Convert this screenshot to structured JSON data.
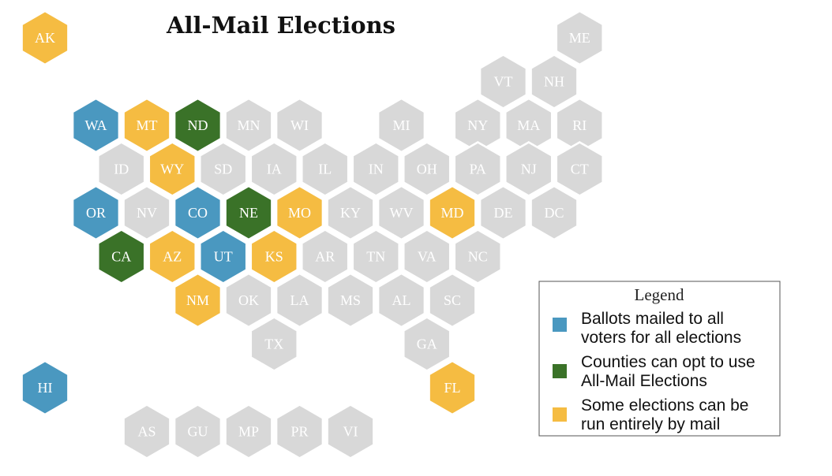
{
  "title": "All-Mail Elections",
  "colors": {
    "none": "#d8d8d8",
    "all_mail": "#4a98c0",
    "county_opt": "#3a7228",
    "some_elections": "#f5bc42"
  },
  "states": [
    {
      "abbr": "AK",
      "category": "some_elections",
      "col": 0,
      "row": 0
    },
    {
      "abbr": "ME",
      "category": "none",
      "col": 10.5,
      "row": 0
    },
    {
      "abbr": "VT",
      "category": "none",
      "col": 9,
      "row": 1
    },
    {
      "abbr": "NH",
      "category": "none",
      "col": 10,
      "row": 1
    },
    {
      "abbr": "WA",
      "category": "all_mail",
      "col": 1,
      "row": 2
    },
    {
      "abbr": "MT",
      "category": "some_elections",
      "col": 2,
      "row": 2
    },
    {
      "abbr": "ND",
      "category": "county_opt",
      "col": 3,
      "row": 2
    },
    {
      "abbr": "MN",
      "category": "none",
      "col": 4,
      "row": 2
    },
    {
      "abbr": "WI",
      "category": "none",
      "col": 5,
      "row": 2
    },
    {
      "abbr": "MI",
      "category": "none",
      "col": 7,
      "row": 2
    },
    {
      "abbr": "NY",
      "category": "none",
      "col": 8.5,
      "row": 2
    },
    {
      "abbr": "MA",
      "category": "none",
      "col": 9.5,
      "row": 2
    },
    {
      "abbr": "RI",
      "category": "none",
      "col": 10.5,
      "row": 2
    },
    {
      "abbr": "ID",
      "category": "none",
      "col": 1.5,
      "row": 3
    },
    {
      "abbr": "WY",
      "category": "some_elections",
      "col": 2.5,
      "row": 3
    },
    {
      "abbr": "SD",
      "category": "none",
      "col": 3.5,
      "row": 3
    },
    {
      "abbr": "IA",
      "category": "none",
      "col": 4.5,
      "row": 3
    },
    {
      "abbr": "IL",
      "category": "none",
      "col": 5.5,
      "row": 3
    },
    {
      "abbr": "IN",
      "category": "none",
      "col": 6.5,
      "row": 3
    },
    {
      "abbr": "OH",
      "category": "none",
      "col": 7.5,
      "row": 3
    },
    {
      "abbr": "PA",
      "category": "none",
      "col": 8.5,
      "row": 3
    },
    {
      "abbr": "NJ",
      "category": "none",
      "col": 9.5,
      "row": 3
    },
    {
      "abbr": "CT",
      "category": "none",
      "col": 10.5,
      "row": 3
    },
    {
      "abbr": "OR",
      "category": "all_mail",
      "col": 1,
      "row": 4
    },
    {
      "abbr": "NV",
      "category": "none",
      "col": 2,
      "row": 4
    },
    {
      "abbr": "CO",
      "category": "all_mail",
      "col": 3,
      "row": 4
    },
    {
      "abbr": "NE",
      "category": "county_opt",
      "col": 4,
      "row": 4
    },
    {
      "abbr": "MO",
      "category": "some_elections",
      "col": 5,
      "row": 4
    },
    {
      "abbr": "KY",
      "category": "none",
      "col": 6,
      "row": 4
    },
    {
      "abbr": "WV",
      "category": "none",
      "col": 7,
      "row": 4
    },
    {
      "abbr": "MD",
      "category": "some_elections",
      "col": 8,
      "row": 4
    },
    {
      "abbr": "DE",
      "category": "none",
      "col": 9,
      "row": 4
    },
    {
      "abbr": "DC",
      "category": "none",
      "col": 10,
      "row": 4
    },
    {
      "abbr": "CA",
      "category": "county_opt",
      "col": 1.5,
      "row": 5
    },
    {
      "abbr": "AZ",
      "category": "some_elections",
      "col": 2.5,
      "row": 5
    },
    {
      "abbr": "UT",
      "category": "all_mail",
      "col": 3.5,
      "row": 5
    },
    {
      "abbr": "KS",
      "category": "some_elections",
      "col": 4.5,
      "row": 5
    },
    {
      "abbr": "AR",
      "category": "none",
      "col": 5.5,
      "row": 5
    },
    {
      "abbr": "TN",
      "category": "none",
      "col": 6.5,
      "row": 5
    },
    {
      "abbr": "VA",
      "category": "none",
      "col": 7.5,
      "row": 5
    },
    {
      "abbr": "NC",
      "category": "none",
      "col": 8.5,
      "row": 5
    },
    {
      "abbr": "NM",
      "category": "some_elections",
      "col": 3,
      "row": 6
    },
    {
      "abbr": "OK",
      "category": "none",
      "col": 4,
      "row": 6
    },
    {
      "abbr": "LA",
      "category": "none",
      "col": 5,
      "row": 6
    },
    {
      "abbr": "MS",
      "category": "none",
      "col": 6,
      "row": 6
    },
    {
      "abbr": "AL",
      "category": "none",
      "col": 7,
      "row": 6
    },
    {
      "abbr": "SC",
      "category": "none",
      "col": 8,
      "row": 6
    },
    {
      "abbr": "TX",
      "category": "none",
      "col": 4.5,
      "row": 7
    },
    {
      "abbr": "GA",
      "category": "none",
      "col": 7.5,
      "row": 7
    },
    {
      "abbr": "HI",
      "category": "all_mail",
      "col": 0,
      "row": 8
    },
    {
      "abbr": "FL",
      "category": "some_elections",
      "col": 8,
      "row": 8
    },
    {
      "abbr": "AS",
      "category": "none",
      "col": 2,
      "row": 9
    },
    {
      "abbr": "GU",
      "category": "none",
      "col": 3,
      "row": 9
    },
    {
      "abbr": "MP",
      "category": "none",
      "col": 4,
      "row": 9
    },
    {
      "abbr": "PR",
      "category": "none",
      "col": 5,
      "row": 9
    },
    {
      "abbr": "VI",
      "category": "none",
      "col": 6,
      "row": 9
    }
  ],
  "legend": {
    "title": "Legend",
    "items": [
      {
        "category": "all_mail",
        "lines": [
          "Ballots mailed to all",
          "voters for all elections"
        ]
      },
      {
        "category": "county_opt",
        "lines": [
          "Counties can opt to use",
          "All-Mail Elections"
        ]
      },
      {
        "category": "some_elections",
        "lines": [
          "Some elections can be",
          "run entirely by mail"
        ]
      }
    ]
  }
}
